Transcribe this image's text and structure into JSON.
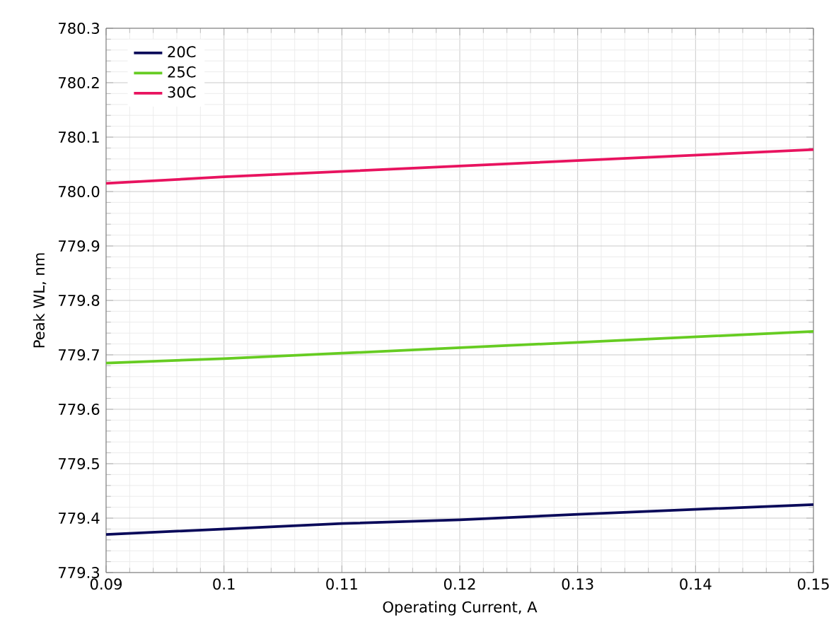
{
  "chart_data": {
    "type": "line",
    "xlabel": "Operating Current, A",
    "ylabel": "Peak WL, nm",
    "x": [
      0.09,
      0.1,
      0.11,
      0.12,
      0.13,
      0.14,
      0.15
    ],
    "series": [
      {
        "name": "20C",
        "color": "#0a0a5a",
        "values": [
          779.37,
          779.38,
          779.39,
          779.397,
          779.407,
          779.416,
          779.425
        ]
      },
      {
        "name": "25C",
        "color": "#66cc22",
        "values": [
          779.685,
          779.693,
          779.703,
          779.713,
          779.723,
          779.733,
          779.743
        ]
      },
      {
        "name": "30C",
        "color": "#e8135f",
        "values": [
          780.015,
          780.027,
          780.037,
          780.047,
          780.057,
          780.067,
          780.077
        ]
      }
    ],
    "xlim": [
      0.09,
      0.15
    ],
    "xticks": [
      0.09,
      0.1,
      0.11,
      0.12,
      0.13,
      0.14,
      0.15
    ],
    "ylim": [
      779.3,
      780.3
    ],
    "yticks": [
      779.3,
      779.4,
      779.5,
      779.6,
      779.7,
      779.8,
      779.9,
      {
        "value": 780.0,
        "label": "780.0"
      },
      780.1,
      780.2,
      780.3
    ],
    "grid": true,
    "legend": "top left",
    "marker": "none",
    "line_style": "solid"
  }
}
